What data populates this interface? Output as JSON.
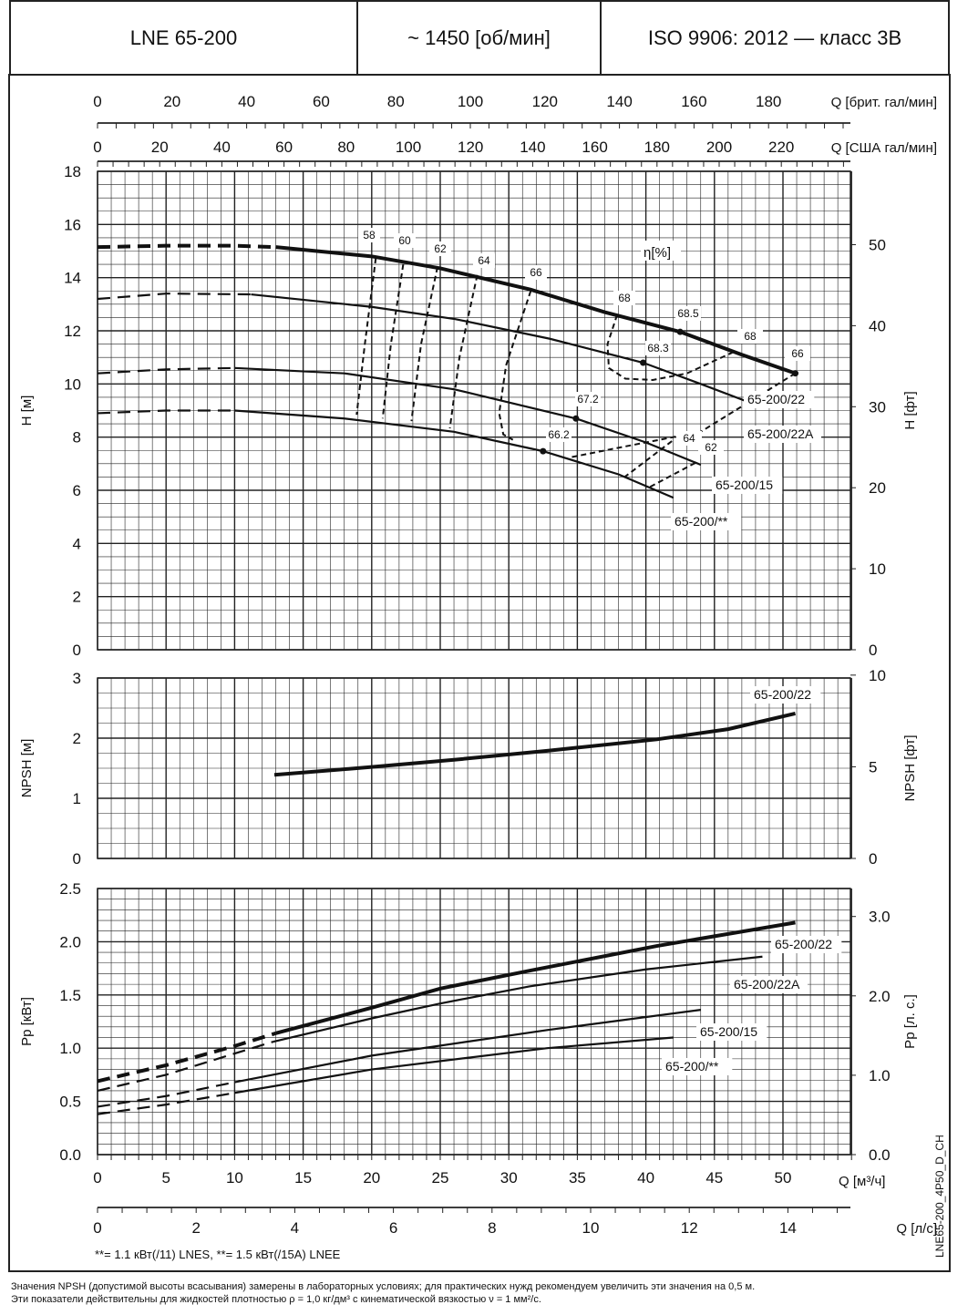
{
  "header": {
    "model": "LNE 65-200",
    "speed": "~ 1450 [об/мин]",
    "standard": "ISO 9906: 2012 — класс 3B"
  },
  "side_code": "LNE65-200_4P50_D_CH",
  "note_stars": "**= 1.1  кВт(/11) LNES, **= 1.5  кВт(/15A) LNEE",
  "footer": [
    "Значения NPSH (допустимой высоты всасывания) замерены в лабораторных условиях; для практических нужд рекомендуем увеличить эти значения на 0,5 м.",
    "Эти показатели действительны для жидкостей плотностью ρ = 1,0 кг/дм³ с кинематической вязкостью ν = 1 мм²/с."
  ],
  "chart_data": [
    {
      "type": "line",
      "name": "H-Q",
      "ylabel": "H [м]",
      "ylabel_right": "H [фт]",
      "ylim": [
        0,
        18
      ],
      "yticks": [
        0,
        2,
        4,
        6,
        8,
        10,
        12,
        14,
        16,
        18
      ],
      "yticks_right": [
        0,
        10,
        20,
        30,
        40,
        50
      ],
      "xlim": [
        0,
        55
      ],
      "eta_label": "η[%]",
      "series": [
        {
          "name": "65-200/22",
          "dashed": [
            [
              0,
              15.15
            ],
            [
              5,
              15.2
            ],
            [
              10,
              15.2
            ],
            [
              13,
              15.15
            ]
          ],
          "values": [
            [
              13,
              15.15
            ],
            [
              20,
              14.8
            ],
            [
              25,
              14.35
            ],
            [
              31.6,
              13.55
            ],
            [
              37,
              12.7
            ],
            [
              42.5,
              11.96
            ],
            [
              47,
              11.1
            ],
            [
              50.9,
              10.4
            ]
          ]
        },
        {
          "name": "65-200/22A",
          "dashed": [
            [
              0,
              13.2
            ],
            [
              5,
              13.4
            ],
            [
              11.2,
              13.37
            ]
          ],
          "values": [
            [
              11.2,
              13.37
            ],
            [
              20,
              12.9
            ],
            [
              26.1,
              12.44
            ],
            [
              33,
              11.7
            ],
            [
              39.8,
              10.8
            ],
            [
              44,
              10.0
            ],
            [
              48.5,
              9.12
            ]
          ]
        },
        {
          "name": "65-200/15",
          "dashed": [
            [
              0,
              10.4
            ],
            [
              5,
              10.55
            ],
            [
              10,
              10.6
            ]
          ],
          "values": [
            [
              10,
              10.6
            ],
            [
              18,
              10.4
            ],
            [
              26,
              9.8
            ],
            [
              34.9,
              8.7
            ],
            [
              40,
              7.8
            ],
            [
              44,
              6.96
            ]
          ]
        },
        {
          "name": "65-200/**",
          "dashed": [
            [
              0,
              8.9
            ],
            [
              5,
              9.0
            ],
            [
              10,
              9.0
            ]
          ],
          "values": [
            [
              10,
              9.0
            ],
            [
              18,
              8.7
            ],
            [
              26,
              8.2
            ],
            [
              32.5,
              7.47
            ],
            [
              38,
              6.6
            ],
            [
              42,
              5.72
            ]
          ]
        }
      ],
      "efficiency": [
        {
          "label": "58",
          "values": [
            [
              20.3,
              14.74
            ],
            [
              19.5,
              11.5
            ],
            [
              18.9,
              8.84
            ]
          ]
        },
        {
          "label": "60",
          "values": [
            [
              22.3,
              14.5
            ],
            [
              21.4,
              11.5
            ],
            [
              20.8,
              8.7
            ]
          ]
        },
        {
          "label": "62",
          "values": [
            [
              24.8,
              14.4
            ],
            [
              23.6,
              11.5
            ],
            [
              22.9,
              8.6
            ]
          ]
        },
        {
          "label": "64",
          "values": [
            [
              27.7,
              14.1
            ],
            [
              26.4,
              11.0
            ],
            [
              25.7,
              8.33
            ]
          ]
        },
        {
          "label": "66",
          "values": [
            [
              31.6,
              13.5
            ],
            [
              29.8,
              10.7
            ],
            [
              29.3,
              8.9
            ],
            [
              29.6,
              8.1
            ],
            [
              30.3,
              7.9
            ]
          ]
        },
        {
          "label": "68",
          "values": [
            [
              37.9,
              12.6
            ],
            [
              37.2,
              11.5
            ],
            [
              37.3,
              10.6
            ],
            [
              38.5,
              10.2
            ],
            [
              40.5,
              10.15
            ],
            [
              43,
              10.4
            ],
            [
              46.3,
              11.18
            ]
          ]
        },
        {
          "label": "66",
          "values": [
            [
              50.9,
              10.4
            ],
            [
              44,
              8.2
            ],
            [
              38,
              7.6
            ],
            [
              34.4,
              7.23
            ]
          ]
        },
        {
          "label": "64",
          "values": [
            [
              41.9,
              7.85
            ],
            [
              38.4,
              6.48
            ]
          ]
        },
        {
          "label": "62",
          "values": [
            [
              43.6,
              7.03
            ],
            [
              40.2,
              6.1
            ]
          ]
        }
      ],
      "points": [
        {
          "label": "68.5",
          "x": 42.5,
          "y": 11.96
        },
        {
          "label": "68.3",
          "x": 39.8,
          "y": 10.8
        },
        {
          "label": "67.2",
          "x": 34.9,
          "y": 8.7
        },
        {
          "label": "66.2",
          "x": 32.5,
          "y": 7.47
        },
        {
          "label": "68",
          "x": 46.3,
          "y": 11.18
        },
        {
          "label": "66",
          "x": 50.9,
          "y": 10.4
        }
      ]
    },
    {
      "type": "line",
      "name": "NPSH",
      "ylabel": "NPSH [м]",
      "ylabel_right": "NPSH [фт]",
      "ylim": [
        0,
        3
      ],
      "yticks": [
        0,
        1,
        2,
        3
      ],
      "yticks_right": [
        0,
        5,
        10
      ],
      "series": [
        {
          "name": "65-200/22",
          "values": [
            [
              12.9,
              1.39
            ],
            [
              20,
              1.52
            ],
            [
              26,
              1.64
            ],
            [
              32.8,
              1.79
            ],
            [
              40.8,
              1.98
            ],
            [
              46,
              2.15
            ],
            [
              50.9,
              2.41
            ]
          ]
        }
      ]
    },
    {
      "type": "line",
      "name": "Power",
      "ylabel": "Pp [кВт]",
      "ylabel_right": "Pp [л. с.]",
      "ylim": [
        0,
        2.5
      ],
      "yticks": [
        "0.0",
        "0.5",
        "1.0",
        "1.5",
        "2.0",
        "2.5"
      ],
      "yticks_right": [
        "0.0",
        "1.0",
        "2.0",
        "3.0"
      ],
      "series": [
        {
          "name": "65-200/22",
          "dashed": [
            [
              0,
              0.69
            ],
            [
              5,
              0.84
            ],
            [
              10,
              1.02
            ],
            [
              13,
              1.14
            ]
          ],
          "values": [
            [
              13,
              1.14
            ],
            [
              20,
              1.38
            ],
            [
              25,
              1.56
            ],
            [
              31.6,
              1.73
            ],
            [
              40.8,
              1.96
            ],
            [
              50.9,
              2.18
            ]
          ]
        },
        {
          "name": "65-200/22A",
          "dashed": [
            [
              0,
              0.6
            ],
            [
              5,
              0.75
            ],
            [
              10,
              0.95
            ],
            [
              12.8,
              1.06
            ]
          ],
          "values": [
            [
              12.8,
              1.06
            ],
            [
              20,
              1.28
            ],
            [
              25,
              1.42
            ],
            [
              31.5,
              1.58
            ],
            [
              40,
              1.74
            ],
            [
              48.5,
              1.86
            ]
          ]
        },
        {
          "name": "65-200/15",
          "dashed": [
            [
              0,
              0.45
            ],
            [
              5,
              0.55
            ],
            [
              10,
              0.68
            ]
          ],
          "values": [
            [
              10,
              0.68
            ],
            [
              20,
              0.93
            ],
            [
              32.8,
              1.17
            ],
            [
              44,
              1.36
            ]
          ]
        },
        {
          "name": "65-200/**",
          "dashed": [
            [
              0,
              0.38
            ],
            [
              5,
              0.47
            ],
            [
              10,
              0.58
            ]
          ],
          "values": [
            [
              10,
              0.58
            ],
            [
              20,
              0.8
            ],
            [
              32.8,
              1.0
            ],
            [
              42,
              1.1
            ]
          ]
        }
      ]
    }
  ],
  "axes": {
    "brit": {
      "label": "Q [брит. гал/мин]",
      "ticks": [
        0,
        20,
        40,
        60,
        80,
        100,
        120,
        140,
        160,
        180
      ]
    },
    "us": {
      "label": "Q [США гал/мин]",
      "ticks": [
        0,
        20,
        40,
        60,
        80,
        100,
        120,
        140,
        160,
        180,
        200,
        220
      ]
    },
    "m3h": {
      "label": "Q [м³/ч]",
      "ticks": [
        0,
        5,
        10,
        15,
        20,
        25,
        30,
        35,
        40,
        45,
        50
      ]
    },
    "ls": {
      "label": "Q [л/с]",
      "ticks": [
        0,
        2,
        4,
        6,
        8,
        10,
        12,
        14
      ]
    }
  }
}
